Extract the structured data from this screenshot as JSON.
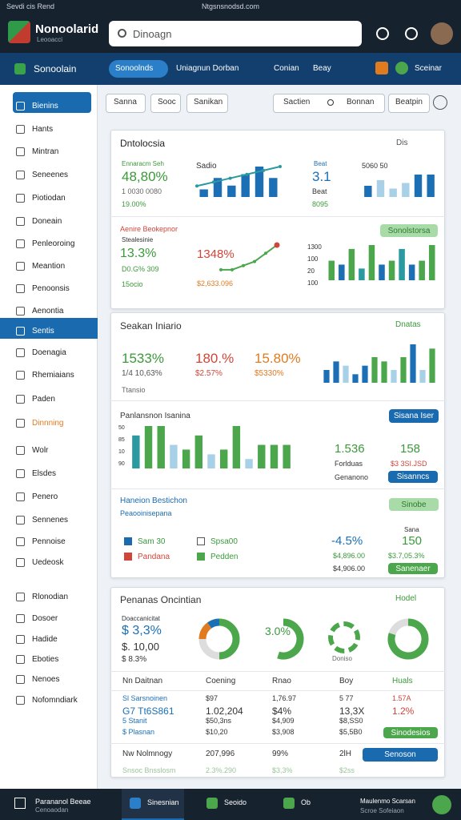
{
  "status": {
    "left": "Sevdi cis Rend",
    "center": "Ntgsnsnodsd.com"
  },
  "header": {
    "app": "Nonoolarid",
    "sub": "Leooacci",
    "search": "Dinoagn"
  },
  "nav": {
    "brand": "Sonoolain",
    "tabs": [
      "Sonoolnds",
      "Uniagnun Dorban",
      "Conian",
      "Beay"
    ],
    "user": "Sceinar"
  },
  "sidebar": {
    "items": [
      "Bienins",
      "Hants",
      "Mintran",
      "Seneenes",
      "Piotiodan",
      "Doneain",
      "Penleoroing",
      "Meantion",
      "Penoonsis",
      "Aenontia",
      "Sentis",
      "Doenagia",
      "Rhemiaians",
      "Paden",
      "Dinnning",
      "Wolr",
      "Elsdes",
      "Penero",
      "Sennenes",
      "Pennoise",
      "Uedeosk",
      "Rlonodian",
      "Dosoer",
      "Hadide",
      "Eboties",
      "Nenoes",
      "Nofomndiark"
    ]
  },
  "filters": [
    "Sanna",
    "Sooc",
    "Sanikan",
    "Sactien",
    "Bonnan",
    "Beatpin"
  ],
  "card1": {
    "title": "Dntolocsia",
    "control": "Dis",
    "a": {
      "label": "Ennaracm Seh",
      "value": "48,80%",
      "sub1": "1 0030 0080",
      "sub2": "19.00%"
    },
    "chartA": {
      "title": "Sadio",
      "bars": [
        2,
        5,
        3,
        6,
        8,
        5
      ],
      "line": [
        2,
        3,
        4,
        5,
        6,
        7
      ]
    },
    "b": {
      "label": "Beat",
      "value": "3.1",
      "sub1": "Beat",
      "sub2": "8095"
    },
    "chartB": {
      "title": "5060 50",
      "bars": [
        4,
        6,
        3,
        5,
        8,
        8
      ],
      "colors": [
        "#1c6fb5",
        "#a8d0e6",
        "#a8d0e6",
        "#a8d0e6",
        "#1c6fb5",
        "#1c6fb5"
      ]
    },
    "c": {
      "label": "Aenire Beokepnor",
      "sub": "Stealesinie",
      "value": "13.3%",
      "sub1": "D0.G% 309",
      "sub2": "15ocio"
    },
    "chartC": {
      "value": "1348%",
      "sub": "$2,633.096",
      "line": [
        1,
        1,
        2,
        3,
        5,
        7
      ]
    },
    "chartD": {
      "button": "Sonolstorsa",
      "ylabels": [
        "1300",
        "100",
        "20",
        "100"
      ],
      "bars": [
        5,
        4,
        8,
        3,
        9,
        4,
        5,
        8,
        4,
        5,
        9
      ],
      "colors": [
        "#4ca64c",
        "#1c6fb5",
        "#4ca64c",
        "#2a9aa0",
        "#4ca64c",
        "#1c6fb5",
        "#4ca64c",
        "#2a9aa0",
        "#1c6fb5",
        "#4ca64c",
        "#4ca64c"
      ]
    }
  },
  "card2": {
    "title": "Seakan Iniario",
    "control": "Dnatas",
    "stats": [
      {
        "value": "1533%",
        "sub": "1/4 10,63%",
        "color": "#3a9a3a"
      },
      {
        "value": "180.%",
        "sub": "$2.57%",
        "color": "#d0453a"
      },
      {
        "value": "15.80%",
        "sub": "$5330%",
        "color": "#e07b20"
      }
    ],
    "note": "Ttansio",
    "chart": {
      "bars": [
        3,
        5,
        4,
        2,
        4,
        6,
        5,
        3,
        6,
        9,
        3,
        8
      ],
      "colors": [
        "#1c6fb5",
        "#1c6fb5",
        "#a8d0e6",
        "#1c6fb5",
        "#1c6fb5",
        "#4ca64c",
        "#4ca64c",
        "#a8d0e6",
        "#4ca64c",
        "#1c6fb5",
        "#a8d0e6",
        "#4ca64c"
      ]
    },
    "perf": {
      "title": "Panlansnon Isanina",
      "button": "Sisana Iser",
      "ylabels": [
        "50",
        "85",
        "10",
        "90"
      ],
      "bars": [
        7,
        9,
        9,
        5,
        4,
        7,
        3,
        4,
        9,
        2,
        5,
        5,
        5
      ],
      "colors": [
        "#2a9aa0",
        "#4ca64c",
        "#4ca64c",
        "#a8d0e6",
        "#4ca64c",
        "#4ca64c",
        "#a8d0e6",
        "#4ca64c",
        "#4ca64c",
        "#a8d0e6",
        "#4ca64c",
        "#4ca64c",
        "#4ca64c"
      ],
      "v1": "1.536",
      "v2": "158",
      "s1": "Forlduas",
      "s2": "$3 3SI.JSD",
      "s3": "Genanono",
      "button2": "Sisanncs"
    },
    "bal": {
      "title": "Haneion Bestichon",
      "sub": "Peaooinisepana",
      "button": "Sinobe",
      "legend": [
        "Sam 30",
        "Spsa00",
        "Pandana",
        "Pedden"
      ],
      "v1": "-4.5%",
      "v2": "150",
      "s0": "Sana",
      "s1": "$4,896.00",
      "s2": "$3.7,05.3%",
      "s3": "$4,906.00",
      "button2": "Sanenaer"
    }
  },
  "card3": {
    "title": "Penanas Oncintian",
    "control": "Hodel",
    "label": "Doaccanicitat",
    "v1": "$ 3,3%",
    "v2": "$. 10,00",
    "v3": "$ 8.3%",
    "donut1": [
      50,
      25,
      15,
      10
    ],
    "donut1_colors": [
      "#4ca64c",
      "#dddddd",
      "#e07b20",
      "#1c6fb5"
    ],
    "donut2": {
      "label": "3.0%",
      "values": [
        55,
        45
      ]
    },
    "recycle": "Doniso",
    "donut3": [
      80,
      20
    ],
    "table": {
      "header": [
        "Nn Daitnan",
        "Coening",
        "Rnao",
        "Boy",
        "Huals"
      ],
      "rows": [
        [
          "Sl Sarsnoinen",
          "$97",
          "1,76.97",
          "5 77",
          "1.57A"
        ],
        [
          "G7 Tt6S861",
          "1.02,204",
          "$4%",
          "13,3X",
          "1.2%"
        ],
        [
          "5 Stanit",
          "$50,3ns",
          "$4,909",
          "$8,SS0",
          ""
        ],
        [
          "$ Plasnan",
          "$10,20",
          "$3,908",
          "$5,5B0",
          ""
        ]
      ],
      "button": "Sinodesios",
      "total": [
        "Nw Nolmnogy",
        "207,996",
        "99%",
        "2lH"
      ],
      "totalButton": "Senoson",
      "faded": [
        "Snsoc Bnsslosm",
        "2.3%.290",
        "$3,3%",
        "$2ss"
      ]
    }
  },
  "footer": {
    "left": "Parananol Beeae",
    "left2": "Cenoaodan",
    "tabs": [
      "Sinesnian",
      "Seoido",
      "Ob"
    ],
    "right": "Maulenmo Scarsan",
    "right2": "Scroe Sofeiaon"
  }
}
